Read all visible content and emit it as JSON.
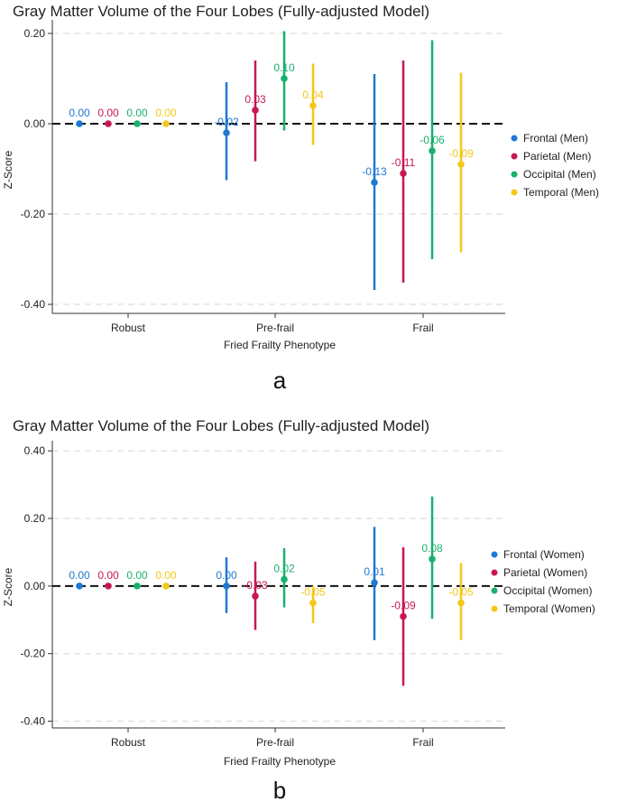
{
  "colors": {
    "Frontal": "#1f78d4",
    "Parietal": "#c8174f",
    "Occipital": "#19b06e",
    "Temporal": "#f4c81a",
    "zero_line": "#111111",
    "grid": "#e3e3e3",
    "axis": "#333333"
  },
  "chart_data": [
    {
      "type": "scatter",
      "subtype": "point-range",
      "panel_label": "a",
      "title": "Gray Matter Volume of the Four Lobes (Fully-adjusted Model)",
      "xlabel": "Fried Frailty Phenotype",
      "ylabel": "Z-Score",
      "categories": [
        "Robust",
        "Pre-frail",
        "Frail"
      ],
      "ylim": [
        -0.42,
        0.23
      ],
      "yticks": [
        -0.4,
        -0.2,
        0.0,
        0.2
      ],
      "ytick_labels": [
        "-0.40",
        "-0.20",
        "0.00",
        "0.20"
      ],
      "grid": true,
      "legend_position": "right",
      "series": [
        {
          "key": "Frontal",
          "name": "Frontal (Men)",
          "values": [
            0.0,
            -0.02,
            -0.13
          ],
          "lower": [
            0.0,
            -0.125,
            -0.368
          ],
          "upper": [
            0.0,
            0.092,
            0.11
          ],
          "labels": [
            "0.00",
            "-0.02",
            "-0.13"
          ]
        },
        {
          "key": "Parietal",
          "name": "Parietal (Men)",
          "values": [
            0.0,
            0.03,
            -0.11
          ],
          "lower": [
            0.0,
            -0.083,
            -0.352
          ],
          "upper": [
            0.0,
            0.14,
            0.14
          ],
          "labels": [
            "0.00",
            "0.03",
            "-0.11"
          ]
        },
        {
          "key": "Occipital",
          "name": "Occipital (Men)",
          "values": [
            0.0,
            0.1,
            -0.06
          ],
          "lower": [
            0.0,
            -0.015,
            -0.3
          ],
          "upper": [
            0.0,
            0.205,
            0.185
          ],
          "labels": [
            "0.00",
            "0.10",
            "-0.06"
          ]
        },
        {
          "key": "Temporal",
          "name": "Temporal (Men)",
          "values": [
            0.0,
            0.04,
            -0.09
          ],
          "lower": [
            0.0,
            -0.047,
            -0.285
          ],
          "upper": [
            0.0,
            0.133,
            0.113
          ],
          "labels": [
            "0.00",
            "0.04",
            "-0.09"
          ]
        }
      ]
    },
    {
      "type": "scatter",
      "subtype": "point-range",
      "panel_label": "b",
      "title": "Gray Matter Volume of the Four Lobes (Fully-adjusted Model)",
      "xlabel": "Fried Frailty Phenotype",
      "ylabel": "Z-Score",
      "categories": [
        "Robust",
        "Pre-frail",
        "Frail"
      ],
      "ylim": [
        -0.42,
        0.43
      ],
      "yticks": [
        -0.4,
        -0.2,
        0.0,
        0.2,
        0.4
      ],
      "ytick_labels": [
        "-0.40",
        "-0.20",
        "0.00",
        "0.20",
        "0.40"
      ],
      "grid": true,
      "legend_position": "right",
      "series": [
        {
          "key": "Frontal",
          "name": "Frontal (Women)",
          "values": [
            0.0,
            0.0,
            0.01
          ],
          "lower": [
            0.0,
            -0.08,
            -0.16
          ],
          "upper": [
            0.0,
            0.085,
            0.175
          ],
          "labels": [
            "0.00",
            "0.00",
            "0.01"
          ]
        },
        {
          "key": "Parietal",
          "name": "Parietal (Women)",
          "values": [
            0.0,
            -0.03,
            -0.09
          ],
          "lower": [
            0.0,
            -0.13,
            -0.295
          ],
          "upper": [
            0.0,
            0.072,
            0.115
          ],
          "labels": [
            "0.00",
            "-0.03",
            "-0.09"
          ]
        },
        {
          "key": "Occipital",
          "name": "Occipital (Women)",
          "values": [
            0.0,
            0.02,
            0.08
          ],
          "lower": [
            0.0,
            -0.063,
            -0.097
          ],
          "upper": [
            0.0,
            0.112,
            0.265
          ],
          "labels": [
            "0.00",
            "0.02",
            "0.08"
          ]
        },
        {
          "key": "Temporal",
          "name": "Temporal (Women)",
          "values": [
            0.0,
            -0.05,
            -0.05
          ],
          "lower": [
            0.0,
            -0.11,
            -0.16
          ],
          "upper": [
            0.0,
            0.0,
            0.068
          ],
          "labels": [
            "0.00",
            "-0.05",
            "-0.05"
          ]
        }
      ]
    }
  ]
}
